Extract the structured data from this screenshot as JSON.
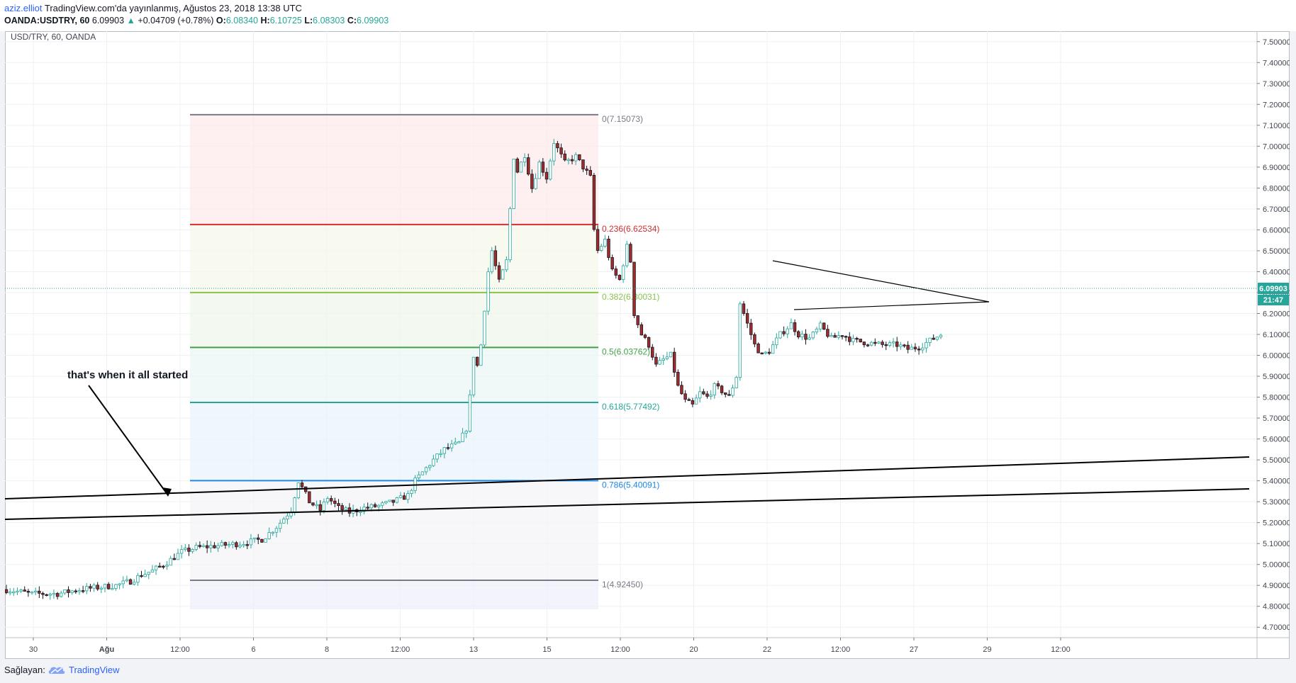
{
  "header": {
    "author": "aziz.elliot",
    "published": "TradingView.com'da yayınlanmış, Ağustos 23, 2018 13:38 UTC",
    "symbol_line": "OANDA:USDTRY, 60",
    "last": "6.09903",
    "change": "+0.04709 (+0.78%)",
    "o_label": "O:",
    "o_value": "6.08340",
    "h_label": "H:",
    "h_value": "6.10725",
    "l_label": "L:",
    "l_value": "6.08303",
    "c_label": "C:",
    "c_value": "6.09903"
  },
  "chart_title": "USD/TRY, 60, OANDA",
  "price_badge": "6.09903",
  "timer_badge": "21:47",
  "annotation": "that's when it all started",
  "footer": {
    "label": "Sağlayan:",
    "brand": "TradingView"
  },
  "colors": {
    "up": "#26a69a",
    "down": "#a52a2a",
    "candle_up_body": "#ffffff",
    "fib_0": "#787b86",
    "fib_236": "#d32f2f",
    "fib_382": "#8bc34a",
    "fib_5": "#43a047",
    "fib_618": "#26a69a",
    "fib_786": "#1e88e5",
    "fib_1": "#787b86"
  },
  "icons": {
    "change": "triangle-up-icon",
    "brand_logo": "tradingview-cloud-icon"
  },
  "chart_data": {
    "type": "candlestick",
    "symbol": "OANDA:USDTRY",
    "interval": "60",
    "ylim": [
      4.65,
      7.55
    ],
    "y_ticks": [
      "7.50000",
      "7.40000",
      "7.30000",
      "7.20000",
      "7.10000",
      "7.00000",
      "6.90000",
      "6.80000",
      "6.70000",
      "6.60000",
      "6.50000",
      "6.40000",
      "6.30000",
      "6.20000",
      "6.10000",
      "6.00000",
      "5.90000",
      "5.80000",
      "5.70000",
      "5.60000",
      "5.50000",
      "5.40000",
      "5.30000",
      "5.20000",
      "5.10000",
      "5.00000",
      "4.90000",
      "4.80000",
      "4.70000"
    ],
    "x_ticks": [
      "30",
      "Ağu",
      "12:00",
      "6",
      "8",
      "12:00",
      "13",
      "15",
      "12:00",
      "20",
      "22",
      "12:00",
      "27",
      "29",
      "12:00"
    ],
    "fibonacci": [
      {
        "label": "0(7.15073)",
        "ratio": 0,
        "price": 7.15073
      },
      {
        "label": "0.236(6.62534)",
        "ratio": 0.236,
        "price": 6.62534
      },
      {
        "label": "0.382(6.30031)",
        "ratio": 0.382,
        "price": 6.30031
      },
      {
        "label": "0.5(6.03762)",
        "ratio": 0.5,
        "price": 6.03762
      },
      {
        "label": "0.618(5.77492)",
        "ratio": 0.618,
        "price": 5.77492
      },
      {
        "label": "0.786(5.40091)",
        "ratio": 0.786,
        "price": 5.40091
      },
      {
        "label": "1(4.92450)",
        "ratio": 1,
        "price": 4.9245
      }
    ],
    "price_path": [
      [
        0,
        4.88
      ],
      [
        7,
        4.86
      ],
      [
        14,
        4.86
      ],
      [
        20,
        4.88
      ],
      [
        25,
        4.89
      ],
      [
        30,
        4.9
      ],
      [
        34,
        4.92
      ],
      [
        37,
        4.95
      ],
      [
        40,
        4.97
      ],
      [
        44,
        5.01
      ],
      [
        48,
        5.06
      ],
      [
        52,
        5.08
      ],
      [
        58,
        5.09
      ],
      [
        64,
        5.1
      ],
      [
        70,
        5.12
      ],
      [
        74,
        5.18
      ],
      [
        78,
        5.26
      ],
      [
        80,
        5.4
      ],
      [
        83,
        5.3
      ],
      [
        86,
        5.26
      ],
      [
        88,
        5.32
      ],
      [
        91,
        5.27
      ],
      [
        94,
        5.25
      ],
      [
        98,
        5.27
      ],
      [
        102,
        5.28
      ],
      [
        106,
        5.3
      ],
      [
        110,
        5.33
      ],
      [
        112,
        5.4
      ],
      [
        114,
        5.44
      ],
      [
        117,
        5.5
      ],
      [
        120,
        5.55
      ],
      [
        124,
        5.58
      ],
      [
        126,
        5.65
      ],
      [
        127,
        5.8
      ],
      [
        128,
        6.0
      ],
      [
        129,
        5.95
      ],
      [
        130,
        6.05
      ],
      [
        132,
        6.4
      ],
      [
        133,
        6.5
      ],
      [
        135,
        6.35
      ],
      [
        137,
        6.45
      ],
      [
        138,
        6.7
      ],
      [
        139,
        6.95
      ],
      [
        140,
        6.88
      ],
      [
        142,
        6.96
      ],
      [
        144,
        6.8
      ],
      [
        146,
        6.92
      ],
      [
        148,
        6.85
      ],
      [
        150,
        7.02
      ],
      [
        153,
        6.92
      ],
      [
        156,
        6.95
      ],
      [
        158,
        6.9
      ],
      [
        160,
        6.85
      ],
      [
        161,
        6.6
      ],
      [
        162,
        6.5
      ],
      [
        164,
        6.55
      ],
      [
        166,
        6.4
      ],
      [
        168,
        6.36
      ],
      [
        170,
        6.52
      ],
      [
        171,
        6.45
      ],
      [
        172,
        6.2
      ],
      [
        174,
        6.1
      ],
      [
        176,
        6.05
      ],
      [
        178,
        5.95
      ],
      [
        180,
        5.98
      ],
      [
        182,
        6.0
      ],
      [
        184,
        5.85
      ],
      [
        186,
        5.78
      ],
      [
        188,
        5.76
      ],
      [
        190,
        5.82
      ],
      [
        192,
        5.8
      ],
      [
        194,
        5.85
      ],
      [
        196,
        5.83
      ],
      [
        198,
        5.8
      ],
      [
        200,
        5.9
      ],
      [
        201,
        6.25
      ],
      [
        203,
        6.15
      ],
      [
        205,
        6.05
      ],
      [
        207,
        6.0
      ],
      [
        209,
        6.02
      ],
      [
        212,
        6.1
      ],
      [
        215,
        6.15
      ],
      [
        217,
        6.1
      ],
      [
        220,
        6.08
      ],
      [
        223,
        6.14
      ],
      [
        226,
        6.08
      ],
      [
        229,
        6.1
      ],
      [
        232,
        6.07
      ],
      [
        236,
        6.06
      ],
      [
        240,
        6.05
      ],
      [
        244,
        6.05
      ],
      [
        247,
        6.03
      ],
      [
        250,
        6.04
      ],
      [
        252,
        6.06
      ],
      [
        254,
        6.08
      ],
      [
        256,
        6.1
      ]
    ],
    "max_index": 256
  }
}
